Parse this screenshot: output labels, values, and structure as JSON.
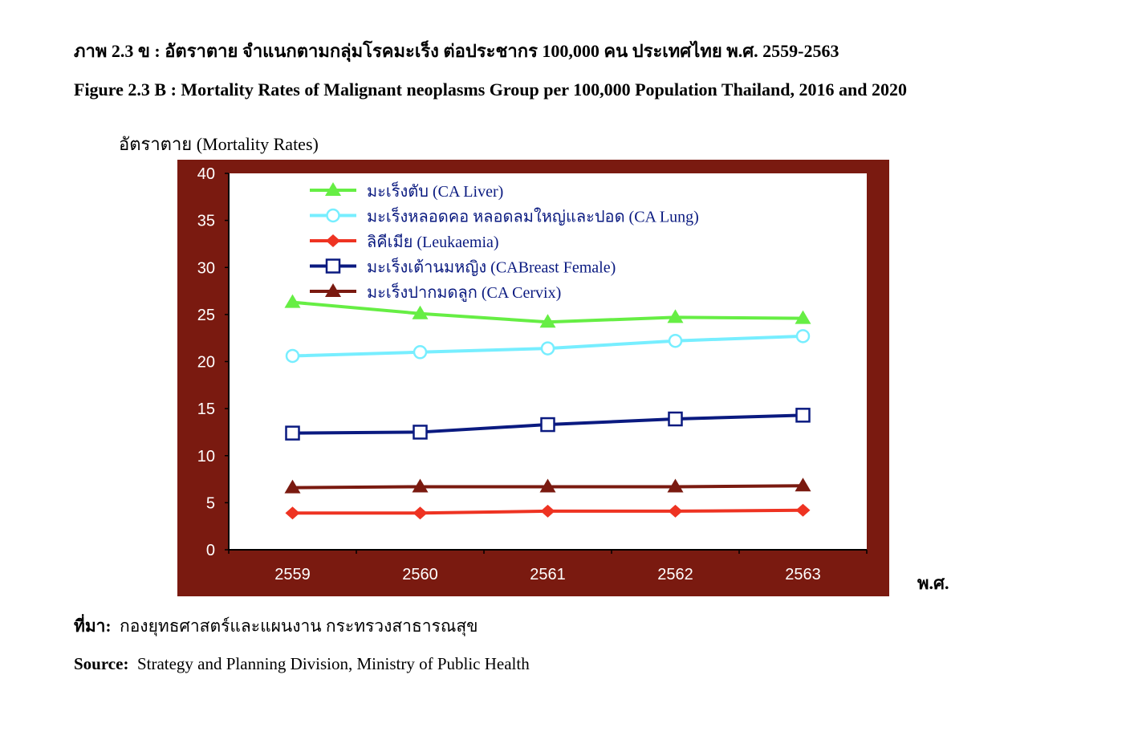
{
  "header": {
    "title_th": "ภาพ 2.3 ข  : อัตราตาย จำแนกตามกลุ่มโรคมะเร็ง ต่อประชากร 100,000 คน  ประเทศไทย พ.ศ. 2559-2563",
    "title_en": "Figure 2.3 B :  Mortality Rates  of Malignant neoplasms Group per 100,000 Population Thailand, 2016 and 2020"
  },
  "footer": {
    "source_th_label": "ที่มา:",
    "source_th": "กองยุทธศาสตร์และแผนงาน  กระทรวงสาธารณสุข",
    "source_en_label": "Source:",
    "source_en": "Strategy and Planning Division, Ministry of  Public Health"
  },
  "chart_data": {
    "type": "line",
    "title": "Mortality Rates of Malignant neoplasms Group per 100,000 Population Thailand",
    "ylabel": "อัตราตาย (Mortality Rates)",
    "xlabel": "พ.ศ.",
    "categories": [
      "2559",
      "2560",
      "2561",
      "2562",
      "2563"
    ],
    "ylim": [
      0,
      40
    ],
    "yticks": [
      "0",
      "5",
      "10",
      "15",
      "20",
      "25",
      "30",
      "35",
      "40"
    ],
    "grid": false,
    "legend_position": "top-left",
    "frame_color": "#7a1a10",
    "series": [
      {
        "name": "มะเร็งตับ (CA Liver)",
        "color": "#66ee44",
        "marker": "triangle",
        "values": [
          26.3,
          25.1,
          24.2,
          24.7,
          24.6
        ]
      },
      {
        "name": "มะเร็งหลอดคอ หลอดลมใหญ่และปอด (CA Lung)",
        "color": "#77eeff",
        "marker": "circle-open",
        "values": [
          20.6,
          21.0,
          21.4,
          22.2,
          22.7
        ]
      },
      {
        "name": "ลิคีเมีย (Leukaemia)",
        "color": "#ee3322",
        "marker": "diamond",
        "values": [
          3.9,
          3.9,
          4.1,
          4.1,
          4.2
        ]
      },
      {
        "name": "มะเร็งเต้านมหญิง (CABreast Female)",
        "color": "#0a1a80",
        "marker": "square-open",
        "values": [
          12.4,
          12.5,
          13.3,
          13.9,
          14.3
        ]
      },
      {
        "name": "มะเร็งปากมดลูก (CA Cervix)",
        "color": "#7a1a10",
        "marker": "triangle",
        "values": [
          6.6,
          6.7,
          6.7,
          6.7,
          6.8
        ]
      }
    ]
  }
}
